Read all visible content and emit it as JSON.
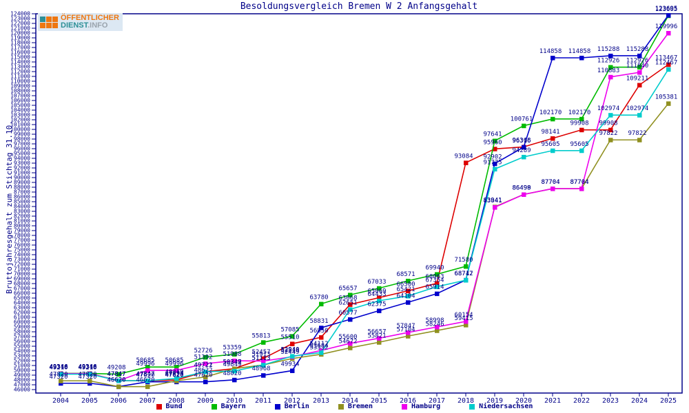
{
  "logo": {
    "line1": "ÖFFENTLICHER",
    "line2_a": "DIENST",
    "line2_b": ".INFO"
  },
  "chart_data": {
    "type": "line",
    "title": "Besoldungsvergleich Bremen W 2 Anfangsgehalt",
    "ylabel": "Bruttojahresgehalt zum Stichtag 31.10.",
    "xlabel": "",
    "ylim": [
      46000,
      124000
    ],
    "ytick_step": 1000,
    "grid": false,
    "legend_position": "bottom",
    "axis_color": "#000088",
    "label_color": "#000088",
    "x": [
      2004,
      2005,
      2006,
      2007,
      2008,
      2009,
      2010,
      2011,
      2012,
      2013,
      2014,
      2015,
      2016,
      2017,
      2018,
      2019,
      2020,
      2021,
      2022,
      2023,
      2024,
      2025
    ],
    "series": [
      {
        "name": "Bund",
        "color": "#dd0000",
        "values": [
          49346,
          49346,
          47847,
          47847,
          47994,
          49722,
          50349,
          52457,
          55510,
          56850,
          63668,
          65069,
          66500,
          68063,
          93084,
          95960,
          96368,
          98141,
          99908,
          99908,
          109211,
          113467
        ]
      },
      {
        "name": "Bayern",
        "color": "#00bb00",
        "values": [
          49346,
          49346,
          49208,
          50685,
          50685,
          52726,
          53359,
          55813,
          57085,
          63780,
          65657,
          67033,
          68571,
          69940,
          71580,
          97641,
          100761,
          102170,
          102170,
          112926,
          112926,
          123605
        ]
      },
      {
        "name": "Berlin",
        "color": "#0000cc",
        "values": [
          47320,
          47320,
          46620,
          47620,
          47620,
          47620,
          48020,
          48968,
          49934,
          58831,
          60577,
          62375,
          64104,
          65914,
          68747,
          92902,
          96316,
          114858,
          114858,
          115288,
          115288,
          123695
        ]
      },
      {
        "name": "Bremen",
        "color": "#909020",
        "values": [
          47820,
          47820,
          46620,
          46620,
          47820,
          48622,
          50347,
          51113,
          52449,
          53332,
          54672,
          55821,
          57104,
          58246,
          59415,
          83941,
          86499,
          87704,
          87704,
          97822,
          97822,
          105381
        ]
      },
      {
        "name": "Hamburg",
        "color": "#ee00ee",
        "values": [
          49318,
          49318,
          47847,
          49996,
          49996,
          51392,
          51988,
          51913,
          52818,
          54112,
          55600,
          56657,
          57847,
          58998,
          60154,
          83841,
          86498,
          87704,
          87704,
          110883,
          111840,
          119996
        ]
      },
      {
        "name": "Niedersachsen",
        "color": "#00cccc",
        "values": [
          49210,
          49210,
          47847,
          47847,
          48310,
          49721,
          49849,
          51113,
          52940,
          53684,
          62651,
          64433,
          65421,
          67354,
          68712,
          91775,
          94289,
          95605,
          95605,
          102974,
          102974,
          112467
        ]
      }
    ]
  }
}
